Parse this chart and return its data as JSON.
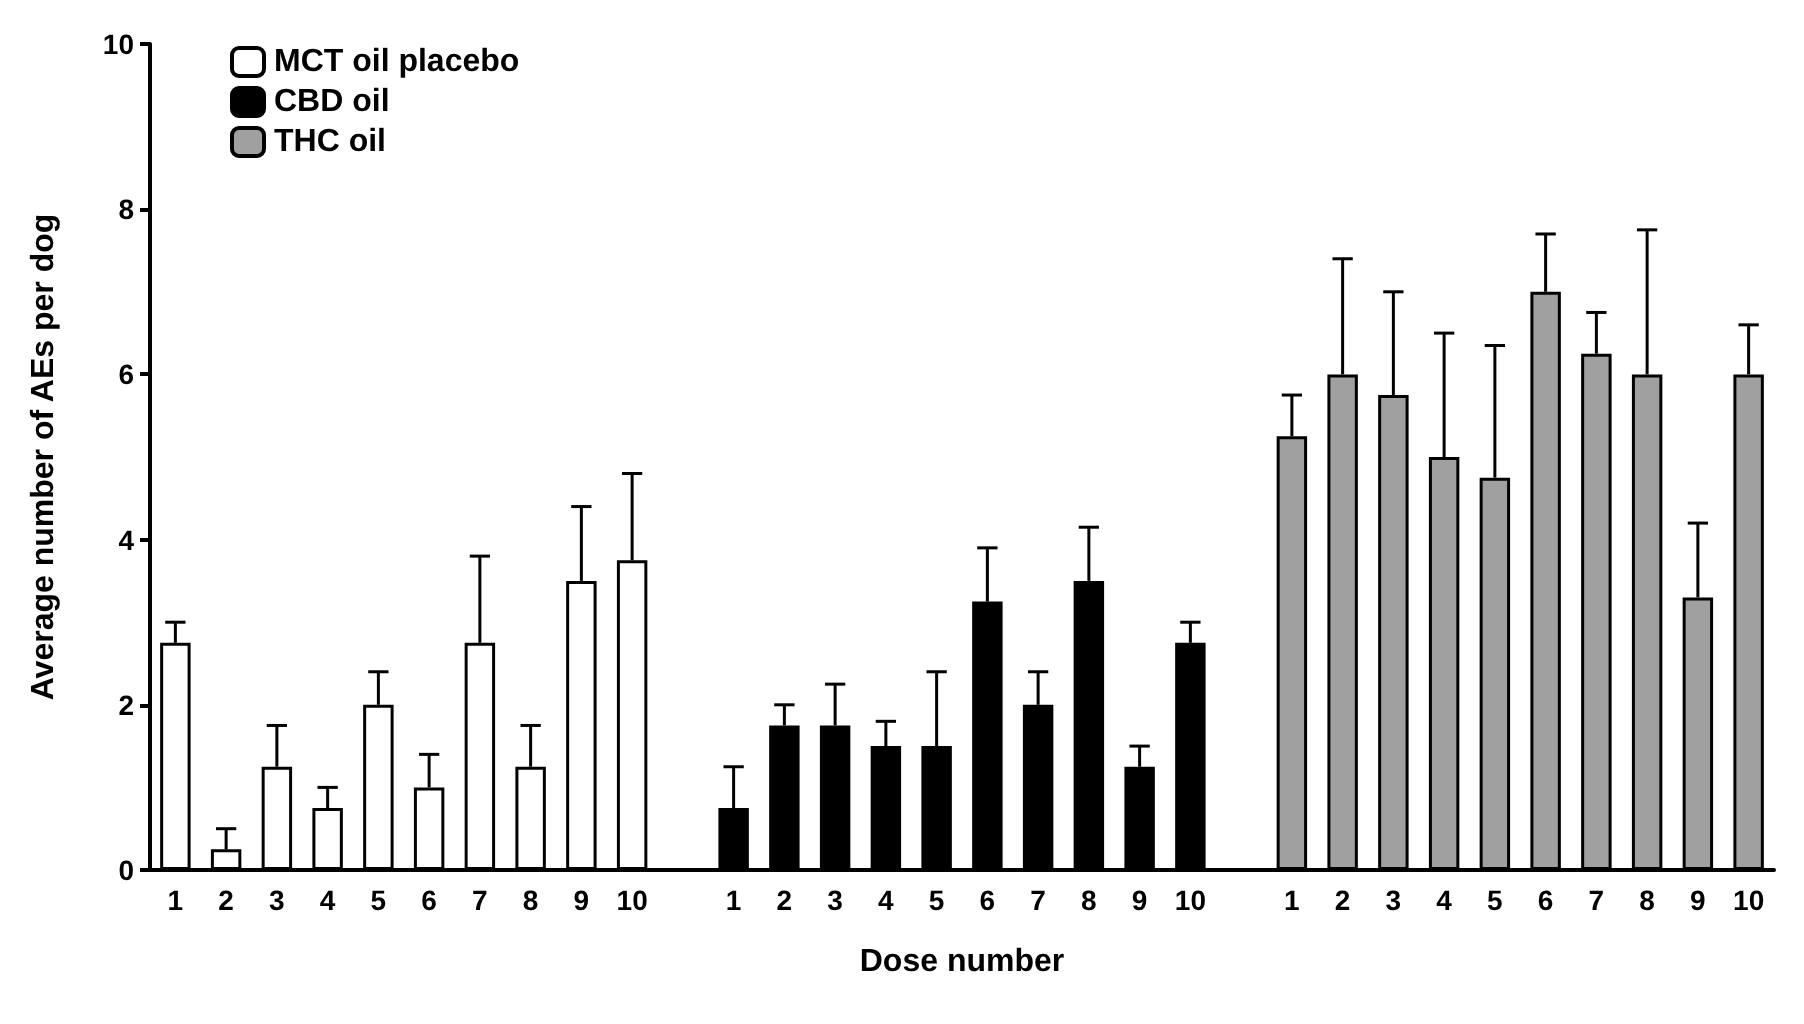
{
  "chart_data": {
    "type": "bar",
    "xlabel": "Dose number",
    "ylabel": "Average number of AEs per dog",
    "categories": [
      "1",
      "2",
      "3",
      "4",
      "5",
      "6",
      "7",
      "8",
      "9",
      "10",
      null,
      "1",
      "2",
      "3",
      "4",
      "5",
      "6",
      "7",
      "8",
      "9",
      "10",
      null,
      "1",
      "2",
      "3",
      "4",
      "5",
      "6",
      "7",
      "8",
      "9",
      "10"
    ],
    "series": [
      {
        "name": "MCT oil placebo",
        "color": "#ffffff",
        "values": [
          2.75,
          0.25,
          1.25,
          0.75,
          2.0,
          1.0,
          2.75,
          1.25,
          3.5,
          3.75,
          null,
          null,
          null,
          null,
          null,
          null,
          null,
          null,
          null,
          null,
          null,
          null,
          null,
          null,
          null,
          null,
          null,
          null,
          null,
          null,
          null,
          null
        ],
        "errors": [
          [
            2.75,
            3.0
          ],
          [
            0.25,
            0.5
          ],
          [
            1.25,
            1.75
          ],
          [
            0.75,
            1.0
          ],
          [
            2.0,
            2.4
          ],
          [
            1.0,
            1.4
          ],
          [
            2.75,
            3.8
          ],
          [
            1.25,
            1.75
          ],
          [
            3.5,
            4.4
          ],
          [
            3.75,
            4.8
          ],
          null,
          null,
          null,
          null,
          null,
          null,
          null,
          null,
          null,
          null,
          null,
          null,
          null,
          null,
          null,
          null,
          null,
          null,
          null,
          null,
          null,
          null
        ]
      },
      {
        "name": "CBD oil",
        "color": "#000000",
        "values": [
          null,
          null,
          null,
          null,
          null,
          null,
          null,
          null,
          null,
          null,
          null,
          0.75,
          1.75,
          1.75,
          1.5,
          1.5,
          3.25,
          2.0,
          3.5,
          1.25,
          2.75,
          null,
          null,
          null,
          null,
          null,
          null,
          null,
          null,
          null,
          null,
          null
        ],
        "errors": [
          null,
          null,
          null,
          null,
          null,
          null,
          null,
          null,
          null,
          null,
          null,
          [
            0.75,
            1.25
          ],
          [
            1.75,
            2.0
          ],
          [
            1.75,
            2.25
          ],
          [
            1.5,
            1.8
          ],
          [
            1.5,
            2.4
          ],
          [
            3.25,
            3.9
          ],
          [
            2.0,
            2.4
          ],
          [
            3.5,
            4.15
          ],
          [
            1.25,
            1.5
          ],
          [
            2.75,
            3.0
          ],
          null,
          null,
          null,
          null,
          null,
          null,
          null,
          null,
          null,
          null,
          null
        ]
      },
      {
        "name": "THC oil",
        "color": "#a0a0a0",
        "values": [
          null,
          null,
          null,
          null,
          null,
          null,
          null,
          null,
          null,
          null,
          null,
          null,
          null,
          null,
          null,
          null,
          null,
          null,
          null,
          null,
          null,
          null,
          5.25,
          6.0,
          5.75,
          5.0,
          4.75,
          7.0,
          6.25,
          6.0,
          3.3,
          6.0
        ],
        "errors": [
          null,
          null,
          null,
          null,
          null,
          null,
          null,
          null,
          null,
          null,
          null,
          null,
          null,
          null,
          null,
          null,
          null,
          null,
          null,
          null,
          null,
          null,
          [
            5.25,
            5.75
          ],
          [
            6.0,
            7.4
          ],
          [
            5.75,
            7.0
          ],
          [
            5.0,
            6.5
          ],
          [
            4.75,
            6.35
          ],
          [
            7.0,
            7.7
          ],
          [
            6.25,
            6.75
          ],
          [
            6.0,
            7.75
          ],
          [
            3.3,
            4.2
          ],
          [
            6.0,
            6.6
          ]
        ]
      }
    ],
    "ylim": [
      0,
      10
    ],
    "yticks": [
      0,
      2,
      4,
      6,
      8,
      10
    ],
    "grid": false,
    "legend": "top left"
  }
}
